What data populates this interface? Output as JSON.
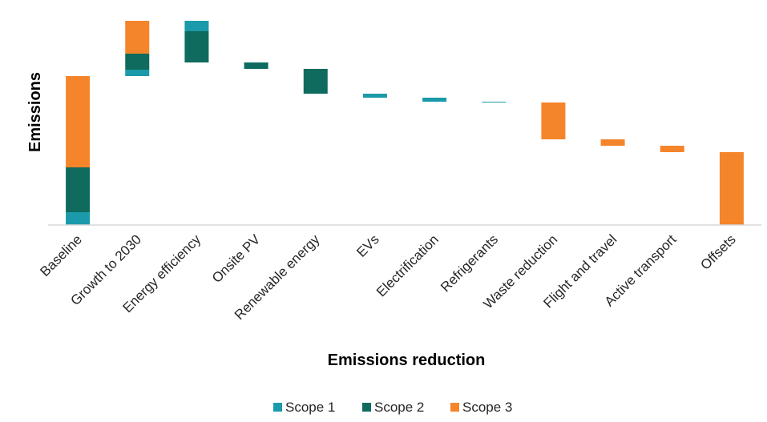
{
  "chart_data": {
    "type": "bar",
    "subtype": "stacked-waterfall",
    "xlabel": "Emissions reduction",
    "ylabel": "Emissions",
    "y_tick_labels_shown": false,
    "grid": false,
    "legend_position": "bottom",
    "colors": {
      "Scope 1": "#1a9aaa",
      "Scope 2": "#0f6b5e",
      "Scope 3": "#f5852a"
    },
    "categories": [
      "Baseline",
      "Growth to 2030",
      "Energy efficiency",
      "Onsite PV",
      "Renewable energy",
      "EVs",
      "Electrification",
      "Refrigerants",
      "Waste reduction",
      "Flight and travel",
      "Active transport",
      "Offsets"
    ],
    "bars": [
      {
        "category": "Baseline",
        "start": 0,
        "segments": [
          {
            "scope": "Scope 1",
            "value": 16
          },
          {
            "scope": "Scope 2",
            "value": 56
          },
          {
            "scope": "Scope 3",
            "value": 114
          }
        ]
      },
      {
        "category": "Growth to 2030",
        "start": 186,
        "segments": [
          {
            "scope": "Scope 1",
            "value": 8
          },
          {
            "scope": "Scope 2",
            "value": 20
          },
          {
            "scope": "Scope 3",
            "value": 41
          }
        ]
      },
      {
        "category": "Energy efficiency",
        "start": 255,
        "segments": [
          {
            "scope": "Scope 1",
            "value": -13
          },
          {
            "scope": "Scope 2",
            "value": -39
          }
        ]
      },
      {
        "category": "Onsite PV",
        "start": 203,
        "segments": [
          {
            "scope": "Scope 2",
            "value": -8
          }
        ]
      },
      {
        "category": "Renewable energy",
        "start": 195,
        "segments": [
          {
            "scope": "Scope 2",
            "value": -31
          }
        ]
      },
      {
        "category": "EVs",
        "start": 164,
        "segments": [
          {
            "scope": "Scope 1",
            "value": -5
          }
        ]
      },
      {
        "category": "Electrification",
        "start": 159,
        "segments": [
          {
            "scope": "Scope 1",
            "value": -5
          }
        ]
      },
      {
        "category": "Refrigerants",
        "start": 154,
        "segments": [
          {
            "scope": "Scope 1",
            "value": -1
          }
        ]
      },
      {
        "category": "Waste reduction",
        "start": 153,
        "segments": [
          {
            "scope": "Scope 3",
            "value": -46
          }
        ]
      },
      {
        "category": "Flight and travel",
        "start": 107,
        "segments": [
          {
            "scope": "Scope 3",
            "value": -8
          }
        ]
      },
      {
        "category": "Active transport",
        "start": 99,
        "segments": [
          {
            "scope": "Scope 3",
            "value": -8
          }
        ]
      },
      {
        "category": "Offsets",
        "start": 0,
        "segments": [
          {
            "scope": "Scope 3",
            "value": 91
          }
        ]
      }
    ],
    "legend": [
      "Scope 1",
      "Scope 2",
      "Scope 3"
    ]
  }
}
